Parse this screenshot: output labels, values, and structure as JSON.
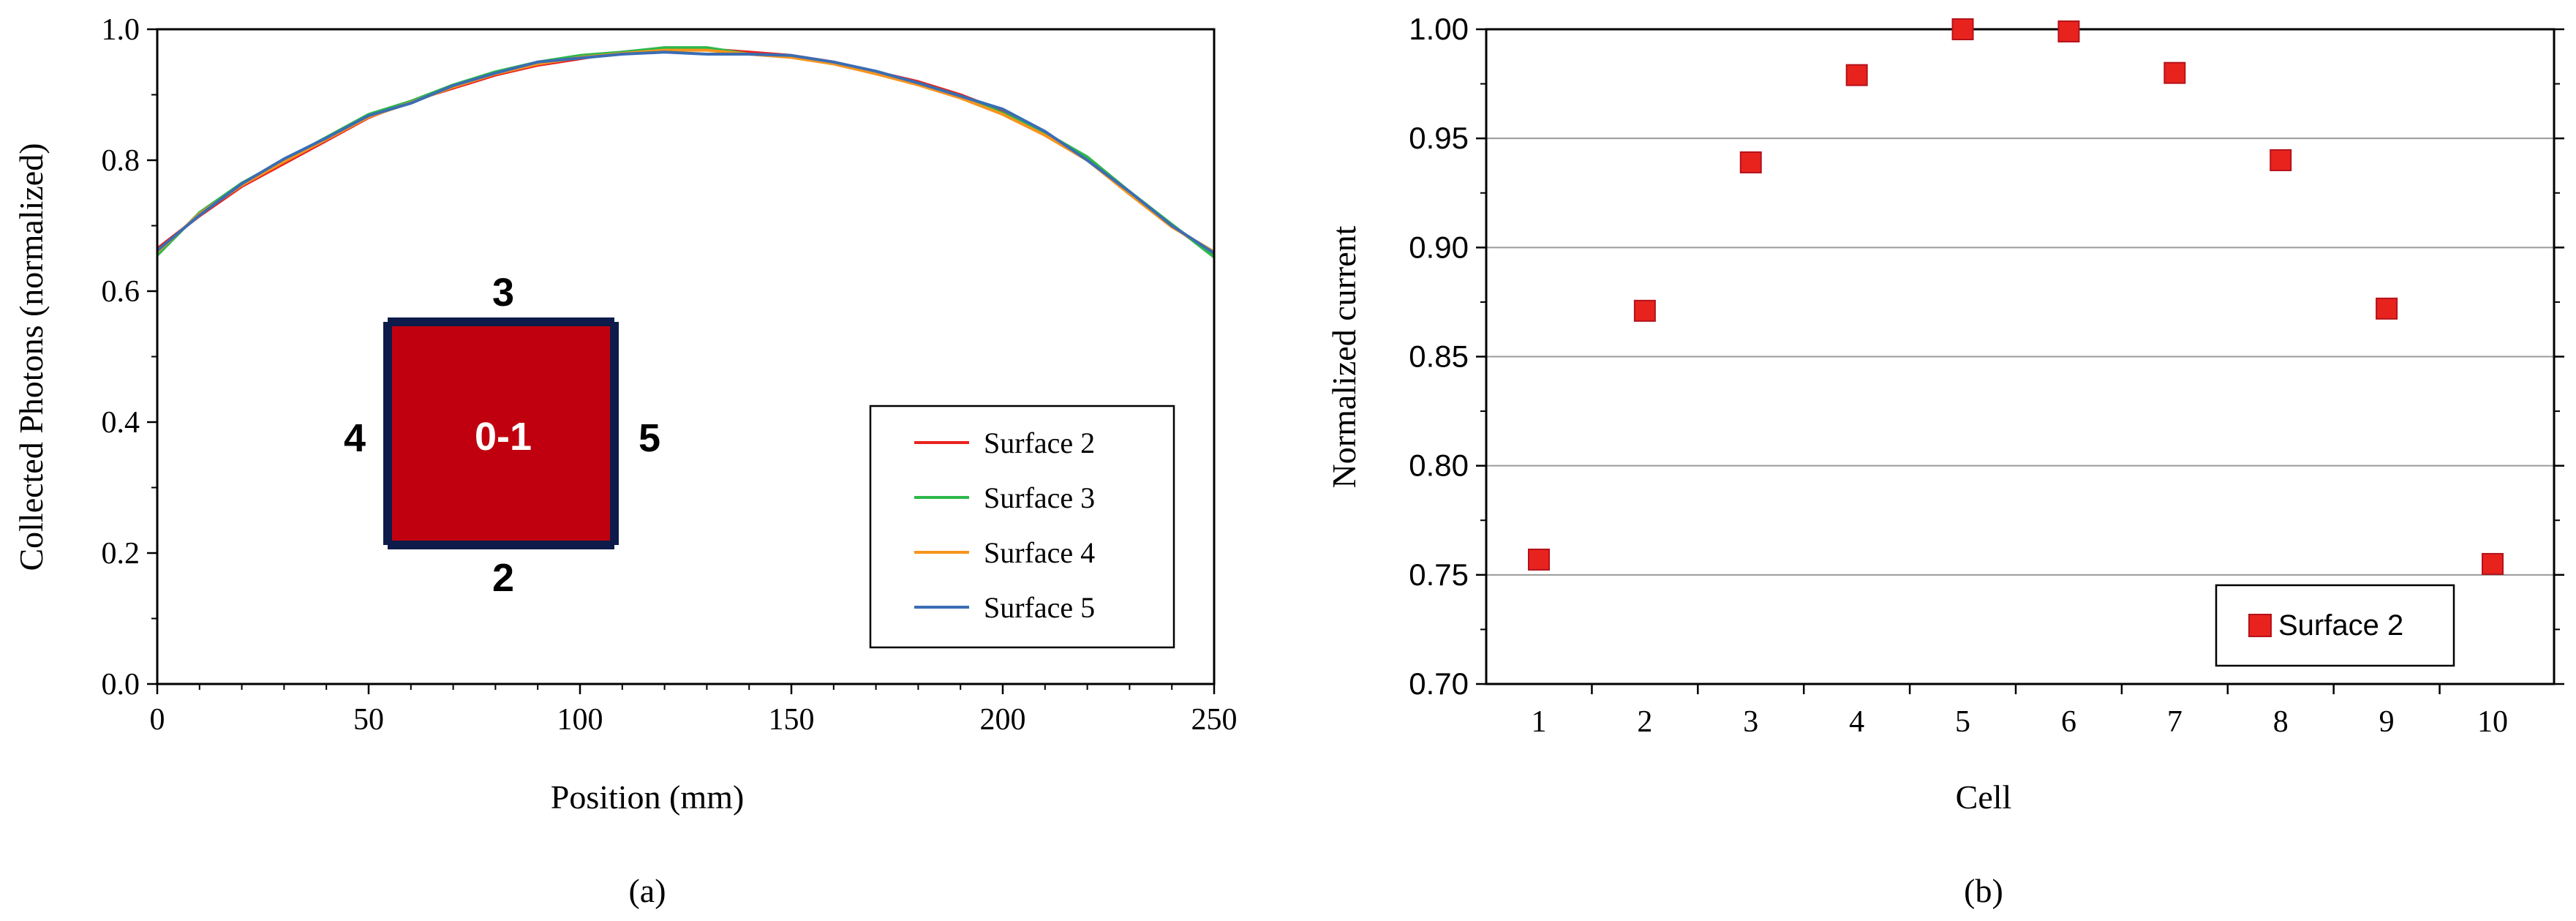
{
  "chart_data": [
    {
      "type": "line",
      "panel_label": "(a)",
      "title": "",
      "xlabel": "Position (mm)",
      "ylabel": "Collected Photons (normalized)",
      "xlim": [
        0,
        250
      ],
      "ylim": [
        0.0,
        1.0
      ],
      "xticks": [
        0,
        50,
        100,
        150,
        200,
        250
      ],
      "yticks": [
        "0.0",
        "0.2",
        "0.4",
        "0.6",
        "0.8",
        "1.0"
      ],
      "grid": false,
      "legend_position": "bottom-right",
      "series": [
        {
          "name": "Surface 2",
          "color": "#e8231e",
          "x": [
            0,
            10,
            20,
            30,
            40,
            50,
            60,
            70,
            80,
            90,
            100,
            110,
            120,
            130,
            140,
            150,
            160,
            170,
            180,
            190,
            200,
            210,
            220,
            230,
            240,
            250
          ],
          "y": [
            0.665,
            0.715,
            0.76,
            0.795,
            0.83,
            0.865,
            0.89,
            0.91,
            0.93,
            0.945,
            0.955,
            0.965,
            0.97,
            0.97,
            0.965,
            0.96,
            0.95,
            0.935,
            0.92,
            0.9,
            0.875,
            0.84,
            0.8,
            0.75,
            0.7,
            0.655
          ]
        },
        {
          "name": "Surface 3",
          "color": "#2db84a",
          "x": [
            0,
            10,
            20,
            30,
            40,
            50,
            60,
            70,
            80,
            90,
            100,
            110,
            120,
            130,
            140,
            150,
            160,
            170,
            180,
            190,
            200,
            210,
            220,
            230,
            240,
            250
          ],
          "y": [
            0.655,
            0.72,
            0.765,
            0.8,
            0.835,
            0.87,
            0.89,
            0.915,
            0.935,
            0.95,
            0.96,
            0.965,
            0.972,
            0.972,
            0.962,
            0.958,
            0.948,
            0.932,
            0.918,
            0.898,
            0.872,
            0.842,
            0.805,
            0.752,
            0.702,
            0.652
          ]
        },
        {
          "name": "Surface 4",
          "color": "#f7941d",
          "x": [
            0,
            10,
            20,
            30,
            40,
            50,
            60,
            70,
            80,
            90,
            100,
            110,
            120,
            130,
            140,
            150,
            160,
            170,
            180,
            190,
            200,
            210,
            220,
            230,
            240,
            250
          ],
          "y": [
            0.66,
            0.718,
            0.762,
            0.798,
            0.832,
            0.866,
            0.888,
            0.912,
            0.932,
            0.947,
            0.957,
            0.963,
            0.968,
            0.968,
            0.962,
            0.957,
            0.947,
            0.932,
            0.915,
            0.895,
            0.87,
            0.838,
            0.8,
            0.748,
            0.698,
            0.66
          ]
        },
        {
          "name": "Surface 5",
          "color": "#3a6db3",
          "x": [
            0,
            10,
            20,
            30,
            40,
            50,
            60,
            70,
            80,
            90,
            100,
            110,
            120,
            130,
            140,
            150,
            160,
            170,
            180,
            190,
            200,
            210,
            220,
            230,
            240,
            250
          ],
          "y": [
            0.662,
            0.716,
            0.764,
            0.802,
            0.834,
            0.868,
            0.887,
            0.914,
            0.933,
            0.95,
            0.956,
            0.962,
            0.965,
            0.962,
            0.962,
            0.96,
            0.95,
            0.936,
            0.918,
            0.898,
            0.878,
            0.844,
            0.8,
            0.752,
            0.7,
            0.658
          ]
        }
      ],
      "inset": {
        "center_label": "0-1",
        "top_label": "3",
        "bottom_label": "2",
        "left_label": "4",
        "right_label": "5",
        "fill_color": "#c0000f",
        "edge_color": "#0d1b4a"
      }
    },
    {
      "type": "scatter",
      "panel_label": "(b)",
      "title": "",
      "xlabel": "Cell",
      "ylabel": "Normalized current",
      "categories": [
        "1",
        "2",
        "3",
        "4",
        "5",
        "6",
        "7",
        "8",
        "9",
        "10"
      ],
      "ylim": [
        0.7,
        1.0
      ],
      "yticks": [
        "0.70",
        "0.75",
        "0.80",
        "0.85",
        "0.90",
        "0.95",
        "1.00"
      ],
      "grid": true,
      "legend_position": "bottom-right",
      "series": [
        {
          "name": "Surface 2",
          "color": "#e8231e",
          "values": [
            0.757,
            0.871,
            0.939,
            0.979,
            1.0,
            0.999,
            0.98,
            0.94,
            0.872,
            0.755
          ]
        }
      ]
    }
  ]
}
